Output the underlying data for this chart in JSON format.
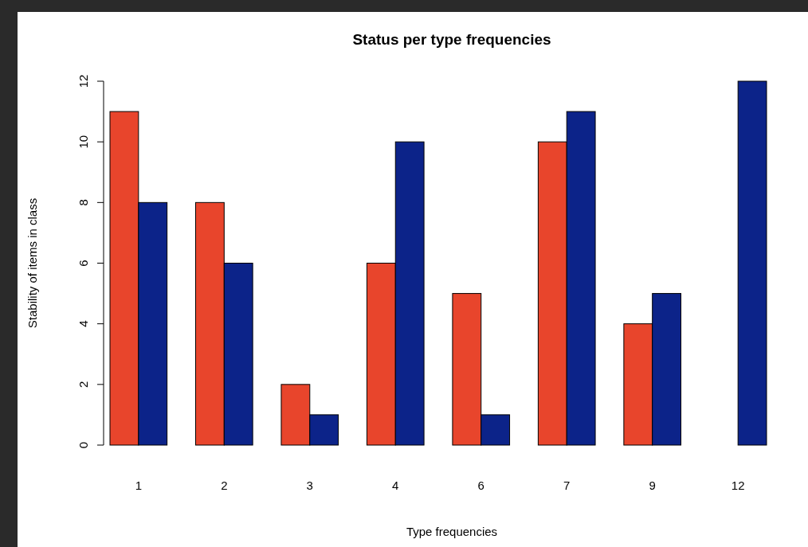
{
  "chart_data": {
    "type": "bar",
    "title": "Status per type frequencies",
    "xlabel": "Type frequencies",
    "ylabel": "Stability of items in class",
    "categories": [
      "1",
      "2",
      "3",
      "4",
      "6",
      "7",
      "9",
      "12"
    ],
    "series": [
      {
        "color": "#e8452c",
        "values": [
          11,
          8,
          2,
          6,
          5,
          10,
          4,
          0
        ]
      },
      {
        "color": "#0c2389",
        "values": [
          8,
          6,
          1,
          10,
          1,
          11,
          5,
          12
        ]
      }
    ],
    "ylim": [
      0,
      12
    ],
    "yticks": [
      0,
      2,
      4,
      6,
      8,
      10,
      12
    ],
    "grid": false
  }
}
